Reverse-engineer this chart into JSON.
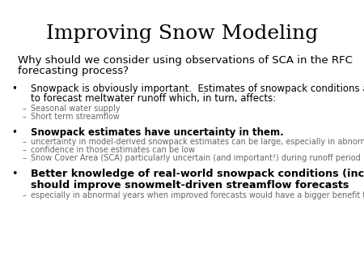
{
  "title": "Improving Snow Modeling",
  "title_fontsize": 18,
  "bg_color": "#ffffff",
  "text_color": "#000000",
  "gray_color": "#666666",
  "subtitle_line1": "Why should we consider using observations of SCA in the RFC",
  "subtitle_line2": "forecasting process?",
  "subtitle_fontsize": 9.5,
  "bullet1_main_line1": "Snowpack is obviously important.  Estimates of snowpack conditions are used",
  "bullet1_main_line2": "to forecast meltwater runoff which, in turn, affects:",
  "bullet1_sub": [
    "Seasonal water supply",
    "Short term streamflow"
  ],
  "bullet2_main": "Snowpack estimates have uncertainty in them.",
  "bullet2_sub": [
    "uncertainty in model-derived snowpack estimates can be large, especially in abnormal years.",
    "confidence in those estimates can be low",
    "Snow Cover Area (SCA) particularly uncertain (and important!) during runoff period"
  ],
  "bullet3_main_line1": "Better knowledge of real-world snowpack conditions (including observed SCA)",
  "bullet3_main_line2": "should improve snowmelt-driven streamflow forecasts",
  "bullet3_sub": [
    "especially in abnormal years when improved forecasts would have a bigger benefit to users."
  ],
  "main_bullet_fontsize": 8.5,
  "sub_bullet_fontsize": 7.0,
  "bullet3_main_fontsize": 9.2
}
